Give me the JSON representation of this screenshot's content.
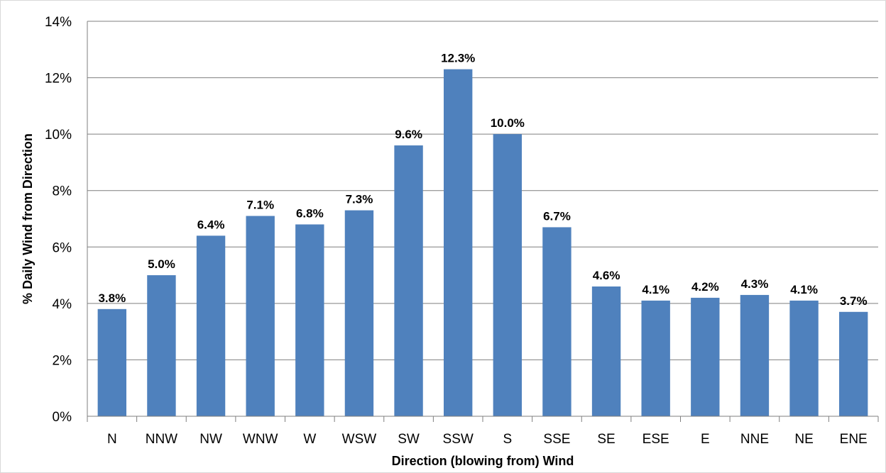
{
  "chart_data": {
    "type": "bar",
    "title": "",
    "xlabel": "Direction (blowing from) Wind",
    "ylabel": "% Daily Wind from Direction",
    "categories": [
      "N",
      "NNW",
      "NW",
      "WNW",
      "W",
      "WSW",
      "SW",
      "SSW",
      "S",
      "SSE",
      "SE",
      "ESE",
      "E",
      "NNE",
      "NE",
      "ENE"
    ],
    "values": [
      3.8,
      5.0,
      6.4,
      7.1,
      6.8,
      7.3,
      9.6,
      12.3,
      10.0,
      6.7,
      4.6,
      4.1,
      4.2,
      4.3,
      4.1,
      3.7
    ],
    "data_labels": [
      "3.8%",
      "5.0%",
      "6.4%",
      "7.1%",
      "6.8%",
      "7.3%",
      "9.6%",
      "12.3%",
      "10.0%",
      "6.7%",
      "4.6%",
      "4.1%",
      "4.2%",
      "4.3%",
      "4.1%",
      "3.7%"
    ],
    "yticks": [
      0,
      2,
      4,
      6,
      8,
      10,
      12,
      14
    ],
    "ytick_labels": [
      "0%",
      "2%",
      "4%",
      "6%",
      "8%",
      "10%",
      "12%",
      "14%"
    ],
    "ylim": [
      0,
      14
    ],
    "grid": true,
    "legend": "none",
    "bar_color": "#4f81bd"
  }
}
